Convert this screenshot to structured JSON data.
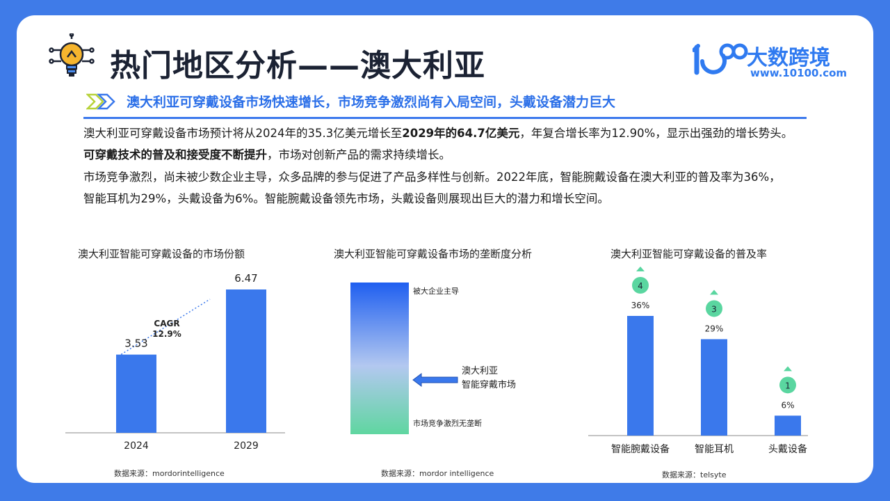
{
  "header": {
    "title": "热门地区分析——澳大利亚",
    "logo_text": "大数跨境",
    "logo_url": "www.10100.com",
    "subtitle": "澳大利亚可穿戴设备市场快速增长，市场竞争激烈尚有入局空间，头戴设备潜力巨大"
  },
  "body": {
    "p1_a": "澳大利亚可穿戴设备市场预计将从2024年的35.3亿美元增长至",
    "p1_b": "2029年的64.7亿美元",
    "p1_c": "，年复合增长率为12.90%，显示出强劲的增长势头。",
    "p2_a": "可穿戴技术的普及和接受度不断提升",
    "p2_b": "，市场对创新产品的需求持续增长。",
    "p3": "市场竞争激烈，尚未被少数企业主导，众多品牌的参与促进了产品多样性与创新。2022年底，智能腕戴设备在澳大利亚的普及率为36%，",
    "p4": "智能耳机为29%，头戴设备为6%。智能腕戴设备领先市场，头戴设备则展现出巨大的潜力和增长空间。"
  },
  "colors": {
    "bar": "#3a78ec",
    "accent": "#2f7af0",
    "rank_badge": "#5ad6a0",
    "gradient_top": "#1f5ff0",
    "gradient_bottom": "#5fd6a0"
  },
  "chart_data": [
    {
      "type": "bar",
      "title": "澳大利亚智能可穿戴设备的市场份额",
      "categories": [
        "2024",
        "2029"
      ],
      "values": [
        3.53,
        6.47
      ],
      "value_labels": [
        "3.53",
        "6.47"
      ],
      "annotation": {
        "line1": "CAGR",
        "line2": "12.9%"
      },
      "source": "数据来源：mordorintelligence"
    },
    {
      "type": "gradient-scale",
      "title": "澳大利亚智能可穿戴设备市场的垄断度分析",
      "top_label": "被大企业主导",
      "bottom_label": "市场竞争激烈无垄断",
      "marker_line1": "澳大利亚",
      "marker_line2": "智能穿戴市场",
      "source": "数据来源：mordor intelligence"
    },
    {
      "type": "bar",
      "title": "澳大利亚智能可穿戴设备的普及率",
      "categories": [
        "智能腕戴设备",
        "智能耳机",
        "头戴设备"
      ],
      "values": [
        36,
        29,
        6
      ],
      "value_labels": [
        "36%",
        "29%",
        "6%"
      ],
      "ranks": [
        "4",
        "3",
        "1"
      ],
      "source": "数据来源：telsyte"
    }
  ]
}
